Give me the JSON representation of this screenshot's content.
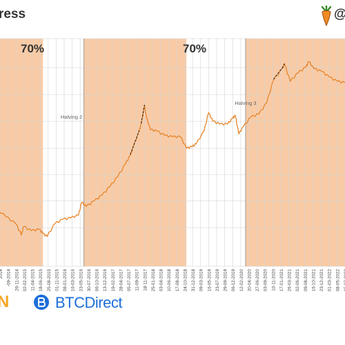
{
  "header": {
    "title": "ress",
    "handle": "@"
  },
  "footer": {
    "left_logo": "N",
    "right_logo": "BTCDirect"
  },
  "colors": {
    "band": "#f8cba6",
    "line": "#e8852b",
    "grid": "#d4d4d4",
    "dark": "#222222"
  },
  "chart_data": {
    "type": "line",
    "title": "",
    "xlabel": "",
    "ylabel": "",
    "log_scale": true,
    "grid": true,
    "xlim": [
      "2014-03-15",
      "2022-09-20"
    ],
    "annotations": [
      "70%",
      "70%",
      "Halving 2",
      "Halving 3"
    ],
    "shaded_periods": [
      {
        "start": "2014-01-01",
        "end": "2015-07-20",
        "label": "70%"
      },
      {
        "start": "2016-07-09",
        "end": "2018-12-15",
        "label": "70%"
      },
      {
        "start": "2020-05-11",
        "end": "2022-09-20",
        "label": ""
      }
    ],
    "halvings": [
      {
        "date": "2016-07-09",
        "label": "Halving 2"
      },
      {
        "date": "2020-05-11",
        "label": "Halving 3"
      }
    ],
    "tick_labels": [
      "2014",
      "-09-2014",
      "26-11-2014",
      "02-02-2015",
      "11-04-2015",
      "18-06-2015",
      "25-08-2015",
      "01-11-2015",
      "08-01-2016",
      "16-03-2016",
      "23-05-2016",
      "30-07-2016",
      "06-10-2016",
      "13-12-2016",
      "19-02-2017",
      "28-04-2017",
      "05-07-2017",
      "11-09-2017",
      "18-11-2017",
      "25-01-2018",
      "03-04-2018",
      "10-06-2018",
      "17-08-2018",
      "24-10-2018",
      "31-12-2018",
      "09-03-2019",
      "16-05-2019",
      "23-07-2019",
      "29-09-2019",
      "06-12-2019",
      "12-02-2020",
      "20-04-2020",
      "27-06-2020",
      "03-09-2020",
      "10-11-2020",
      "17-01-2021",
      "26-03-2021",
      "02-06-2021",
      "09-08-2021",
      "16-10-2021",
      "23-12-2021",
      "01-03-2022",
      "08-05-2022",
      "15-07-2022"
    ],
    "series": [
      {
        "values": [
          [
            "2014-03-15",
            0.45
          ],
          [
            "2014-06-01",
            0.41
          ],
          [
            "2014-09-01",
            0.35
          ],
          [
            "2014-11-26",
            0.3
          ],
          [
            "2015-01-15",
            0.22
          ],
          [
            "2015-02-02",
            0.28
          ],
          [
            "2015-04-11",
            0.25
          ],
          [
            "2015-06-18",
            0.26
          ],
          [
            "2015-07-20",
            0.23
          ],
          [
            "2015-08-25",
            0.21
          ],
          [
            "2015-11-01",
            0.3
          ],
          [
            "2016-01-08",
            0.33
          ],
          [
            "2016-03-16",
            0.34
          ],
          [
            "2016-05-23",
            0.36
          ],
          [
            "2016-06-20",
            0.45
          ],
          [
            "2016-07-30",
            0.42
          ],
          [
            "2016-10-06",
            0.46
          ],
          [
            "2016-12-13",
            0.5
          ],
          [
            "2017-02-19",
            0.56
          ],
          [
            "2017-04-28",
            0.63
          ],
          [
            "2017-07-05",
            0.72
          ],
          [
            "2017-08-15",
            0.78
          ],
          [
            "2017-09-11",
            0.84
          ],
          [
            "2017-11-01",
            0.95
          ],
          [
            "2017-11-18",
            1.0
          ],
          [
            "2017-12-17",
            1.13
          ],
          [
            "2018-01-01",
            1.05
          ],
          [
            "2018-02-06",
            0.96
          ],
          [
            "2018-04-03",
            0.95
          ],
          [
            "2018-06-10",
            0.92
          ],
          [
            "2018-08-17",
            0.91
          ],
          [
            "2018-10-24",
            0.91
          ],
          [
            "2018-12-15",
            0.83
          ],
          [
            "2019-02-01",
            0.84
          ],
          [
            "2019-03-09",
            0.86
          ],
          [
            "2019-05-16",
            0.95
          ],
          [
            "2019-06-26",
            1.08
          ],
          [
            "2019-08-01",
            1.02
          ],
          [
            "2019-09-29",
            1.0
          ],
          [
            "2019-12-06",
            1.0
          ],
          [
            "2020-01-20",
            1.04
          ],
          [
            "2020-02-12",
            1.06
          ],
          [
            "2020-03-13",
            0.93
          ],
          [
            "2020-04-20",
            0.98
          ],
          [
            "2020-06-27",
            1.05
          ],
          [
            "2020-09-03",
            1.07
          ],
          [
            "2020-11-10",
            1.15
          ],
          [
            "2021-01-08",
            1.31
          ],
          [
            "2021-03-26",
            1.39
          ],
          [
            "2021-04-14",
            1.42
          ],
          [
            "2021-06-02",
            1.3
          ],
          [
            "2021-08-09",
            1.36
          ],
          [
            "2021-10-16",
            1.4
          ],
          [
            "2021-11-10",
            1.44
          ],
          [
            "2021-12-23",
            1.39
          ],
          [
            "2022-03-01",
            1.37
          ],
          [
            "2022-05-08",
            1.33
          ],
          [
            "2022-07-15",
            1.3
          ],
          [
            "2022-09-20",
            1.29
          ]
        ]
      }
    ]
  }
}
